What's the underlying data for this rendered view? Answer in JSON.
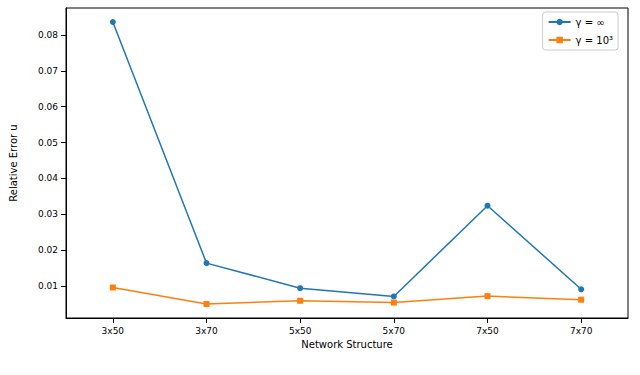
{
  "chart_data": {
    "type": "line",
    "x_label": "Network Structure",
    "y_label": "Relative Error u",
    "categories": [
      "3x50",
      "3x70",
      "5x50",
      "5x70",
      "7x50",
      "7x70"
    ],
    "series": [
      {
        "name": "γ = ∞",
        "color": "#1f77b4",
        "marker": "circle",
        "line_style": "solid",
        "values": [
          0.0836,
          0.0164,
          0.0094,
          0.0071,
          0.0324,
          0.0091
        ]
      },
      {
        "name": "γ = 10³",
        "color": "#ff7f0e",
        "marker": "square",
        "line_style": "solid",
        "values": [
          0.0096,
          0.005,
          0.0059,
          0.0054,
          0.0072,
          0.0062
        ]
      }
    ],
    "ylim": [
      0.0011,
      0.0875
    ],
    "yticks": [
      0.01,
      0.02,
      0.03,
      0.04,
      0.05,
      0.06,
      0.07,
      0.08
    ],
    "grid": false,
    "legend": "upper right"
  }
}
